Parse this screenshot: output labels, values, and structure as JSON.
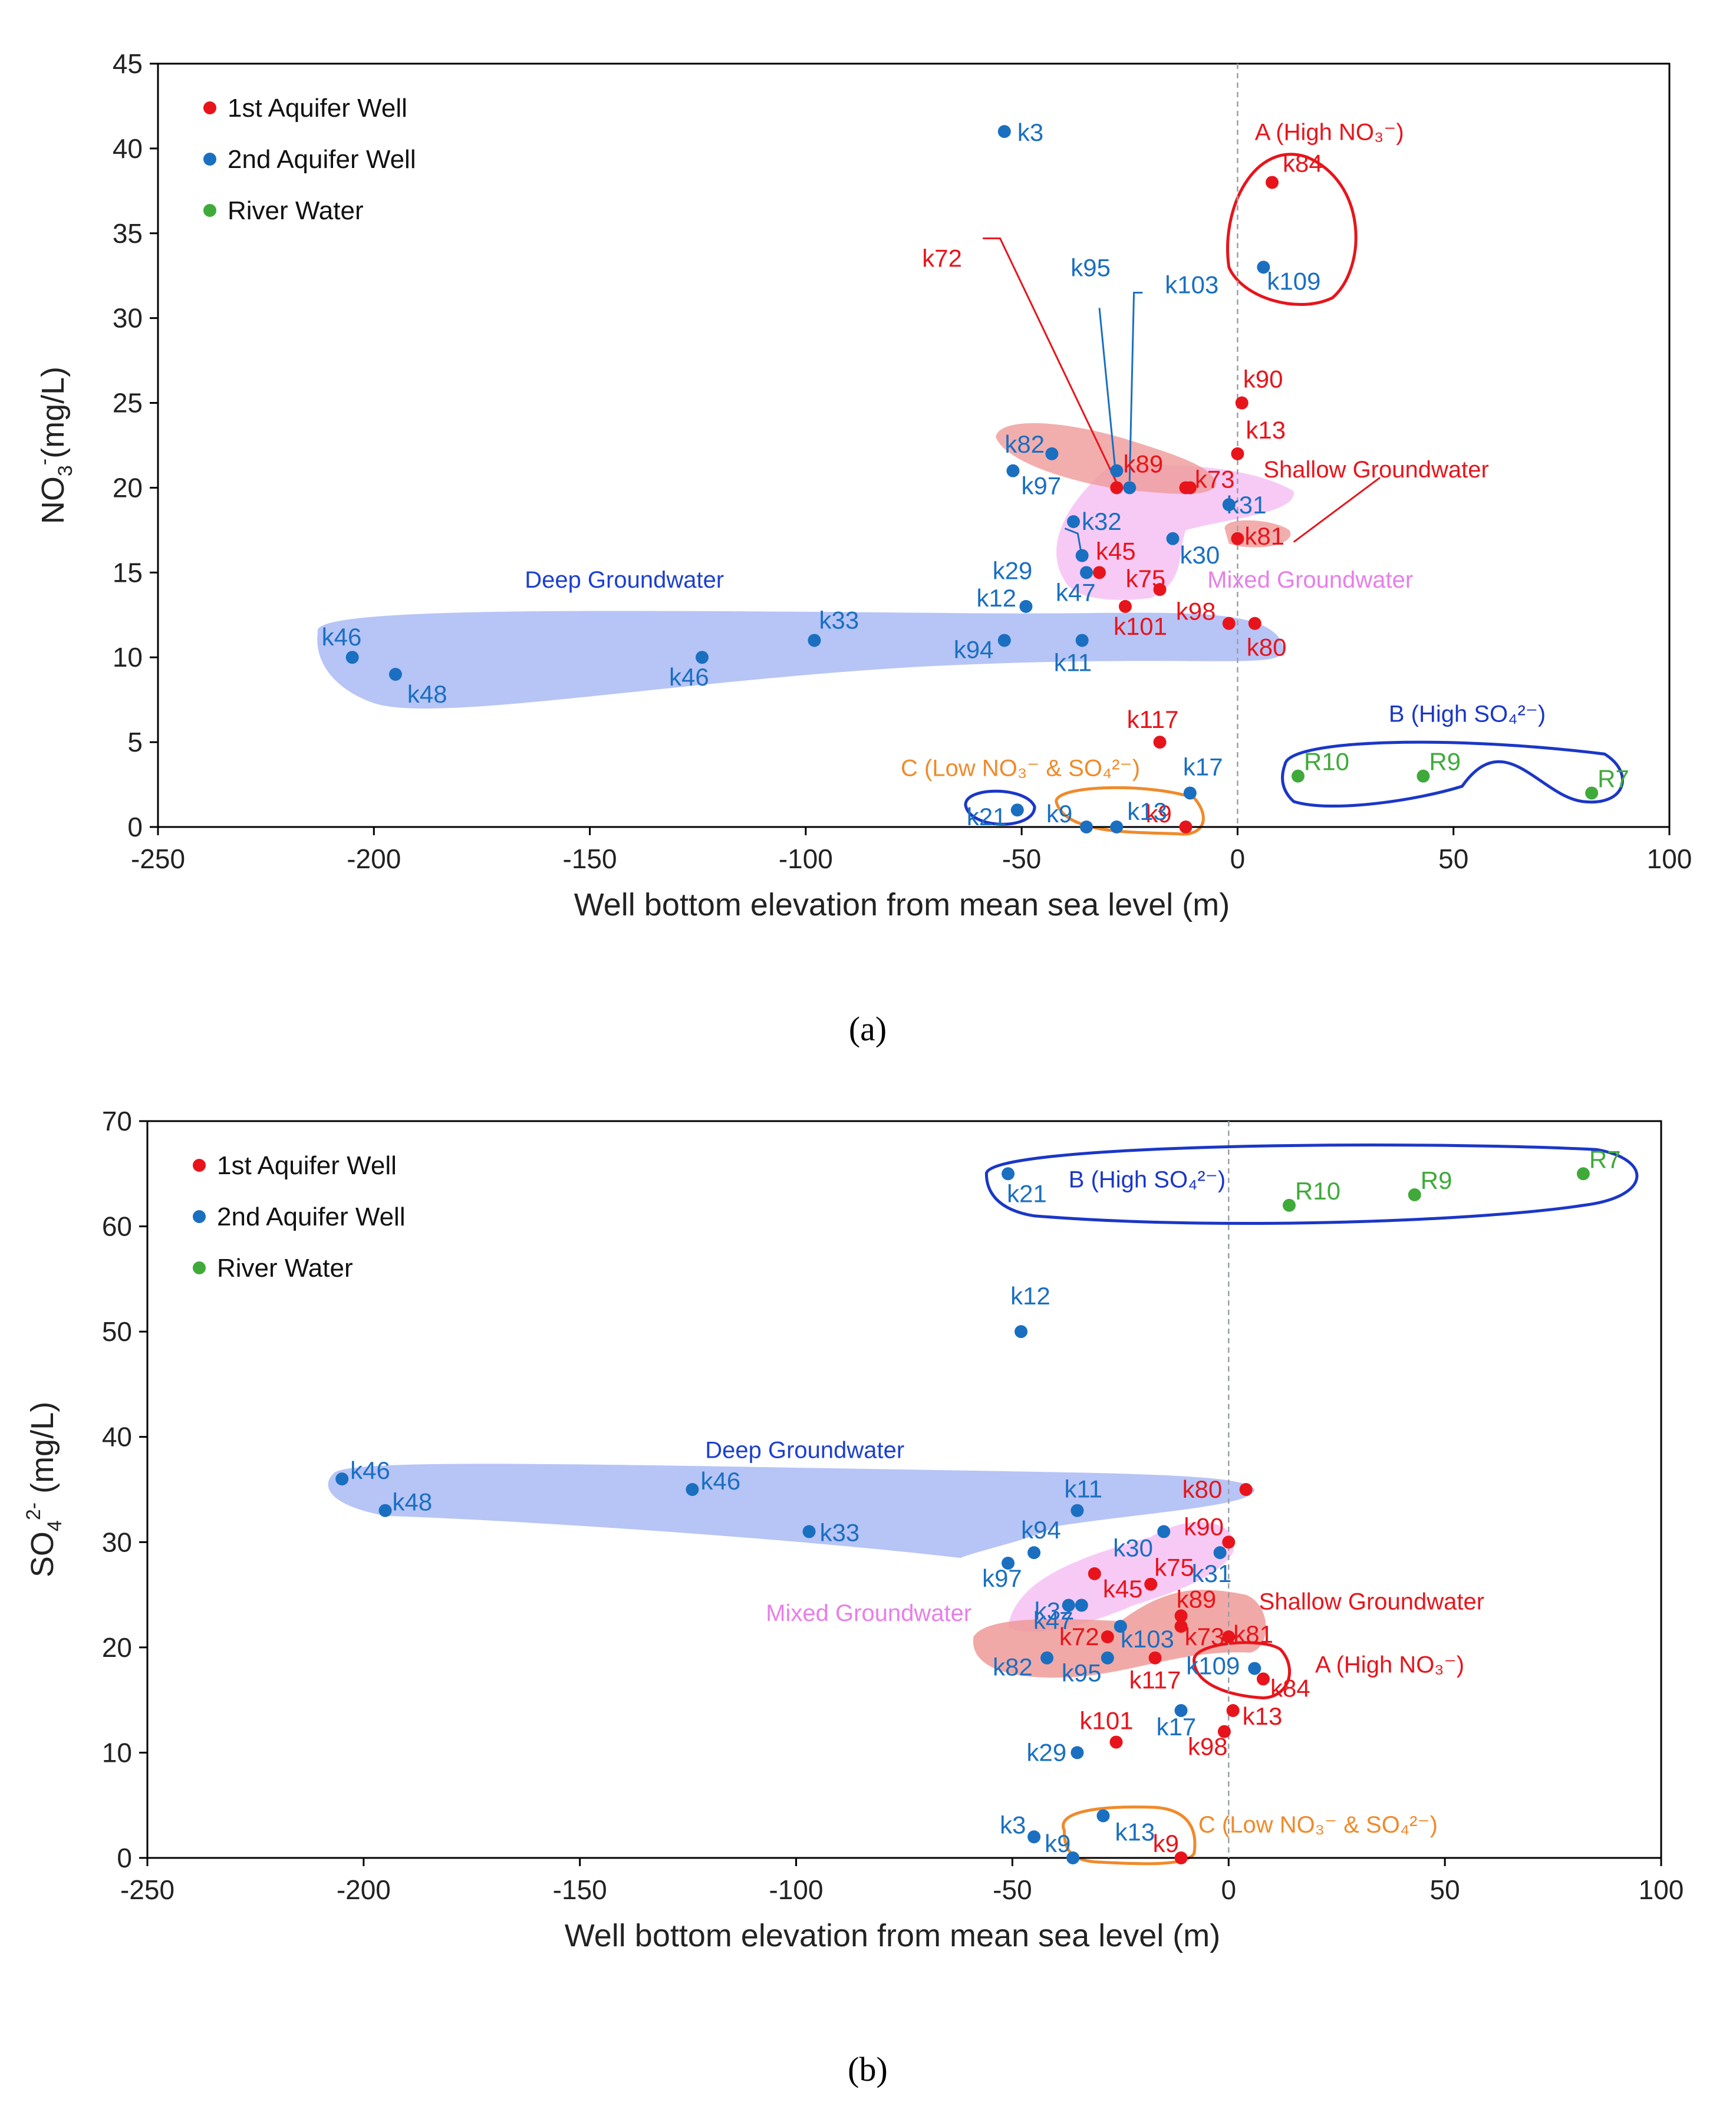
{
  "colors": {
    "first_aquifer": "#e8141b",
    "second_aquifer": "#1a6fc1",
    "river": "#3faa3a",
    "deep_region": "#8b9ff0",
    "mixed_region": "#f4b3f2",
    "shallow_region": "#ee9a98",
    "deep_label": "#1c3fd1",
    "mixed_label": "#e87ee8",
    "shallow_label": "#e8141b",
    "region_a": "#e8141b",
    "region_b": "#1b37c7",
    "region_c": "#f08a2a"
  },
  "chart_data": [
    {
      "type": "scatter",
      "panel": "a",
      "caption": "(a)",
      "xlabel": "Well bottom elevation from mean sea level (m)",
      "ylabel_main": "NO",
      "ylabel_sub": "3",
      "ylabel_sup": "-",
      "ylabel_tail": "(mg/L)",
      "xlim": [
        -250,
        100
      ],
      "ylim": [
        0,
        45
      ],
      "xticks": [
        -250,
        -200,
        -150,
        -100,
        -50,
        0,
        50,
        100
      ],
      "yticks": [
        0,
        5,
        10,
        15,
        20,
        25,
        30,
        35,
        40,
        45
      ],
      "xtick_labels": [
        "-250",
        "-200",
        "-150",
        "-100",
        "-50",
        "0",
        "50",
        "100"
      ],
      "ytick_labels": [
        "0",
        "5",
        "10",
        "15",
        "20",
        "25",
        "30",
        "35",
        "40",
        "45"
      ],
      "legend": [
        "1st Aquifer Well",
        "2nd Aquifer Well",
        "River Water"
      ],
      "region_labels": {
        "deep": "Deep Groundwater",
        "mixed": "Mixed Groundwater",
        "shallow": "Shallow Groundwater",
        "a": "A (High NO₃⁻)",
        "b": "B (High SO₄²⁻)",
        "c": "C (Low NO₃⁻ & SO₄²⁻)"
      },
      "series": [
        {
          "name": "1st Aquifer Well",
          "points": [
            {
              "label": "k72",
              "x": -28,
              "y": 20
            },
            {
              "label": "k84",
              "x": 8,
              "y": 38
            },
            {
              "label": "k90",
              "x": 1,
              "y": 25
            },
            {
              "label": "k13",
              "x": 0,
              "y": 22
            },
            {
              "label": "k89",
              "x": -12,
              "y": 20
            },
            {
              "label": "k73",
              "x": -11,
              "y": 20
            },
            {
              "label": "k81",
              "x": 0,
              "y": 17
            },
            {
              "label": "k45",
              "x": -32,
              "y": 15
            },
            {
              "label": "k75",
              "x": -18,
              "y": 14
            },
            {
              "label": "k101",
              "x": -26,
              "y": 13
            },
            {
              "label": "k98",
              "x": -2,
              "y": 12
            },
            {
              "label": "k80",
              "x": 4,
              "y": 12
            },
            {
              "label": "k117",
              "x": -18,
              "y": 5
            },
            {
              "label": "k9",
              "x": -12,
              "y": 0
            }
          ]
        },
        {
          "name": "2nd Aquifer Well",
          "points": [
            {
              "label": "k3",
              "x": -54,
              "y": 41
            },
            {
              "label": "k109",
              "x": 6,
              "y": 33
            },
            {
              "label": "k95",
              "x": -28,
              "y": 21
            },
            {
              "label": "k103",
              "x": -25,
              "y": 20
            },
            {
              "label": "k82",
              "x": -43,
              "y": 22
            },
            {
              "label": "k97",
              "x": -52,
              "y": 21
            },
            {
              "label": "k31",
              "x": -2,
              "y": 19
            },
            {
              "label": "k32",
              "x": -38,
              "y": 18
            },
            {
              "label": "k29",
              "x": -36,
              "y": 16
            },
            {
              "label": "k30",
              "x": -15,
              "y": 17
            },
            {
              "label": "k47",
              "x": -35,
              "y": 15
            },
            {
              "label": "k12",
              "x": -49,
              "y": 13
            },
            {
              "label": "k94",
              "x": -54,
              "y": 11
            },
            {
              "label": "k11",
              "x": -36,
              "y": 11
            },
            {
              "label": "k33",
              "x": -98,
              "y": 11
            },
            {
              "label": "k46",
              "x": -124,
              "y": 10
            },
            {
              "label": "k46",
              "x": -205,
              "y": 10
            },
            {
              "label": "k48",
              "x": -195,
              "y": 9
            },
            {
              "label": "k17",
              "x": -11,
              "y": 2
            },
            {
              "label": "k21",
              "x": -51,
              "y": 1
            },
            {
              "label": "k9",
              "x": -35,
              "y": 0
            },
            {
              "label": "k13",
              "x": -28,
              "y": 0
            }
          ]
        },
        {
          "name": "River Water",
          "points": [
            {
              "label": "R10",
              "x": 14,
              "y": 3
            },
            {
              "label": "R9",
              "x": 43,
              "y": 3
            },
            {
              "label": "R7",
              "x": 82,
              "y": 2
            }
          ]
        }
      ]
    },
    {
      "type": "scatter",
      "panel": "b",
      "caption": "(b)",
      "xlabel": "Well bottom elevation from mean sea level (m)",
      "ylabel_main": "SO",
      "ylabel_sub": "4",
      "ylabel_sup": "2-",
      "ylabel_tail": " (mg/L)",
      "xlim": [
        -250,
        100
      ],
      "ylim": [
        0,
        70
      ],
      "xticks": [
        -250,
        -200,
        -150,
        -100,
        -50,
        0,
        50,
        100
      ],
      "yticks": [
        0,
        10,
        20,
        30,
        40,
        50,
        60,
        70
      ],
      "xtick_labels": [
        "-250",
        "-200",
        "-150",
        "-100",
        "-50",
        "0",
        "50",
        "100"
      ],
      "ytick_labels": [
        "0",
        "10",
        "20",
        "30",
        "40",
        "50",
        "60",
        "70"
      ],
      "legend": [
        "1st Aquifer Well",
        "2nd Aquifer Well",
        "River Water"
      ],
      "region_labels": {
        "deep": "Deep Groundwater",
        "mixed": "Mixed Groundwater",
        "shallow": "Shallow Groundwater",
        "a": "A (High NO₃⁻)",
        "b": "B (High SO₄²⁻)",
        "c": "C (Low NO₃⁻ & SO₄²⁻)"
      },
      "series": [
        {
          "name": "1st Aquifer Well",
          "points": [
            {
              "label": "k80",
              "x": 4,
              "y": 35
            },
            {
              "label": "k90",
              "x": 0,
              "y": 30
            },
            {
              "label": "k45",
              "x": -31,
              "y": 27
            },
            {
              "label": "k75",
              "x": -18,
              "y": 26
            },
            {
              "label": "k89",
              "x": -11,
              "y": 23
            },
            {
              "label": "k73",
              "x": -11,
              "y": 22
            },
            {
              "label": "k81",
              "x": 0,
              "y": 21
            },
            {
              "label": "k72",
              "x": -28,
              "y": 21
            },
            {
              "label": "k117",
              "x": -17,
              "y": 19
            },
            {
              "label": "k84",
              "x": 8,
              "y": 17
            },
            {
              "label": "k13",
              "x": 1,
              "y": 14
            },
            {
              "label": "k98",
              "x": -1,
              "y": 12
            },
            {
              "label": "k101",
              "x": -26,
              "y": 11
            },
            {
              "label": "k9",
              "x": -11,
              "y": 0
            }
          ]
        },
        {
          "name": "2nd Aquifer Well",
          "points": [
            {
              "label": "k21",
              "x": -51,
              "y": 65
            },
            {
              "label": "k12",
              "x": -48,
              "y": 50
            },
            {
              "label": "k46",
              "x": -205,
              "y": 36
            },
            {
              "label": "k48",
              "x": -195,
              "y": 33
            },
            {
              "label": "k46",
              "x": -124,
              "y": 35
            },
            {
              "label": "k33",
              "x": -97,
              "y": 31
            },
            {
              "label": "k11",
              "x": -35,
              "y": 33
            },
            {
              "label": "k94",
              "x": -45,
              "y": 29
            },
            {
              "label": "k97",
              "x": -51,
              "y": 28
            },
            {
              "label": "k30",
              "x": -15,
              "y": 31
            },
            {
              "label": "k31",
              "x": -2,
              "y": 29
            },
            {
              "label": "k32",
              "x": -37,
              "y": 24
            },
            {
              "label": "k47",
              "x": -34,
              "y": 24
            },
            {
              "label": "k103",
              "x": -25,
              "y": 22
            },
            {
              "label": "k82",
              "x": -42,
              "y": 19
            },
            {
              "label": "k95",
              "x": -28,
              "y": 19
            },
            {
              "label": "k109",
              "x": 6,
              "y": 18
            },
            {
              "label": "k17",
              "x": -11,
              "y": 14
            },
            {
              "label": "k29",
              "x": -35,
              "y": 10
            },
            {
              "label": "k3",
              "x": -45,
              "y": 2
            },
            {
              "label": "k13",
              "x": -29,
              "y": 4
            },
            {
              "label": "k9",
              "x": -36,
              "y": 0
            }
          ]
        },
        {
          "name": "River Water",
          "points": [
            {
              "label": "R7",
              "x": 82,
              "y": 65
            },
            {
              "label": "R9",
              "x": 43,
              "y": 63
            },
            {
              "label": "R10",
              "x": 14,
              "y": 62
            }
          ]
        }
      ]
    }
  ]
}
